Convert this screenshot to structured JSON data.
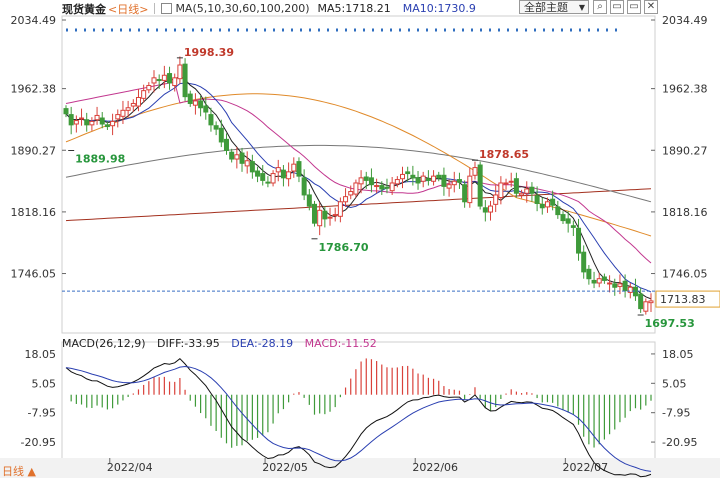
{
  "header": {
    "title": "现货黄金",
    "period": "<日线>",
    "ma_label": "MA(5,10,30,60,100,200)",
    "ma5": "MA5:1718.21",
    "ma10": "MA10:1730.9",
    "theme_label": "全部主题",
    "tools": [
      "search-icon",
      "window-icon",
      "restore-icon",
      "close-icon"
    ],
    "tool_glyphs": [
      "⌕",
      "▭",
      "▭",
      "✕"
    ]
  },
  "price_axis": {
    "ticks": [
      2034.49,
      1962.38,
      1890.27,
      1818.16,
      1746.05
    ],
    "tick_labels": [
      "2034.49",
      "1962.38",
      "1890.27",
      "1818.16",
      "1746.05"
    ],
    "current_price": "1713.83"
  },
  "annotations": [
    {
      "label": "1998.39",
      "value": 1998.39,
      "index": 22,
      "color": "#c0392b"
    },
    {
      "label": "1889.98",
      "value": 1889.98,
      "index": 1,
      "color": "#27963c"
    },
    {
      "label": "1786.70",
      "value": 1786.7,
      "index": 48,
      "color": "#27963c"
    },
    {
      "label": "1878.65",
      "value": 1878.65,
      "index": 79,
      "color": "#c0392b"
    },
    {
      "label": "1697.53",
      "value": 1697.53,
      "index": 111,
      "color": "#27963c"
    }
  ],
  "x_axis": {
    "labels": [
      "2022/04",
      "2022/05",
      "2022/06",
      "2022/07"
    ],
    "label_indices": [
      10,
      40,
      69,
      98
    ]
  },
  "macd": {
    "label": "MACD(26,12,9)",
    "diff_label": "DIFF:-33.95",
    "dea_label": "DEA:-28.19",
    "macd_label": "MACD:-11.52",
    "ticks": [
      18.05,
      5.05,
      -7.95,
      -20.95
    ],
    "tick_labels": [
      "18.05",
      "5.05",
      "-7.95",
      "-20.95"
    ]
  },
  "bottom_period": "日线 ▲",
  "colors": {
    "up": "#d9413a",
    "down": "#3f9a3a",
    "ma5": "#222222",
    "ma10": "#2a3fb1",
    "ma30": "#c2378f",
    "ma60": "#e08a2a",
    "ma100": "#777777",
    "ma200": "#a3301e"
  },
  "chart_data": {
    "type": "candlestick",
    "series_ohlc_close": [
      1933,
      1920,
      1925,
      1928,
      1920,
      1924,
      1931,
      1921,
      1918,
      1924,
      1932,
      1937,
      1940,
      1945,
      1952,
      1960,
      1966,
      1975,
      1972,
      1978,
      1969,
      1975,
      1990,
      1953,
      1945,
      1948,
      1940,
      1935,
      1920,
      1915,
      1900,
      1890,
      1880,
      1885,
      1875,
      1878,
      1865,
      1860,
      1855,
      1852,
      1863,
      1870,
      1858,
      1865,
      1874,
      1860,
      1838,
      1825,
      1805,
      1820,
      1810,
      1812,
      1815,
      1830,
      1836,
      1842,
      1852,
      1858,
      1855,
      1850,
      1849,
      1845,
      1846,
      1852,
      1856,
      1862,
      1863,
      1858,
      1852,
      1860,
      1855,
      1860,
      1858,
      1848,
      1850,
      1854,
      1853,
      1830,
      1860,
      1870,
      1825,
      1818,
      1825,
      1838,
      1852,
      1852,
      1854,
      1840,
      1840,
      1845,
      1840,
      1828,
      1823,
      1830,
      1826,
      1815,
      1808,
      1805,
      1800,
      1770,
      1748,
      1740,
      1735,
      1740,
      1738,
      1735,
      1730,
      1734,
      1726,
      1730,
      1720,
      1705,
      1713,
      1714
    ],
    "ylim": [
      1680,
      2045
    ],
    "macd_ylim": [
      -28,
      22
    ]
  }
}
